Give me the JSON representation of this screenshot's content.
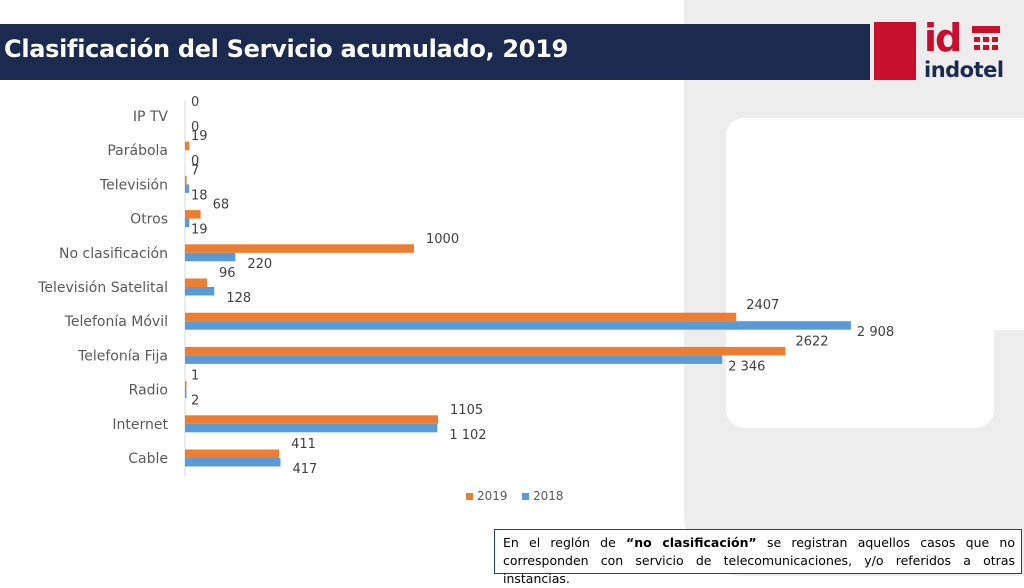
{
  "header": {
    "title": "Clasificación del Servicio acumulado, 2019"
  },
  "logo": {
    "mark": "id",
    "name": "indotel",
    "brand_color": "#c8102e"
  },
  "note": {
    "prefix": "En el reglón de ",
    "emphasis": "“no clasificación”",
    "suffix": " se registran aquellos casos que no corresponden con servicio de telecomunicaciones, y/o referidos a otras instancias."
  },
  "colors": {
    "series_2019": "#ed7d31",
    "series_2018": "#5b9bd5",
    "title_bar": "#1b2a4e"
  },
  "chart_data": {
    "type": "bar",
    "orientation": "horizontal",
    "title": "",
    "xlabel": "",
    "ylabel": "",
    "xlim": [
      0,
      3100
    ],
    "grid": false,
    "legend_position": "bottom",
    "categories": [
      "IP TV",
      "Parábola",
      "Televisión",
      "Otros",
      "No clasificación",
      "Televisión Satelital",
      "Telefonía Móvil",
      "Telefonía Fija",
      "Radio",
      "Internet",
      "Cable"
    ],
    "series": [
      {
        "name": "2019",
        "color": "#ed7d31",
        "values": [
          0,
          19,
          7,
          68,
          1000,
          96,
          2407,
          2622,
          1,
          1105,
          411
        ],
        "labels": [
          "0",
          "19",
          "7",
          "68",
          "1000",
          "96",
          "2407",
          "2622",
          "1",
          "1105",
          "411"
        ]
      },
      {
        "name": "2018",
        "color": "#5b9bd5",
        "values": [
          0,
          0,
          18,
          19,
          220,
          128,
          2908,
          2346,
          2,
          1102,
          417
        ],
        "labels": [
          "0",
          "0",
          "18",
          "19",
          "220",
          "128",
          "2 908",
          "2 346",
          "2",
          "1 102",
          "417"
        ]
      }
    ]
  }
}
